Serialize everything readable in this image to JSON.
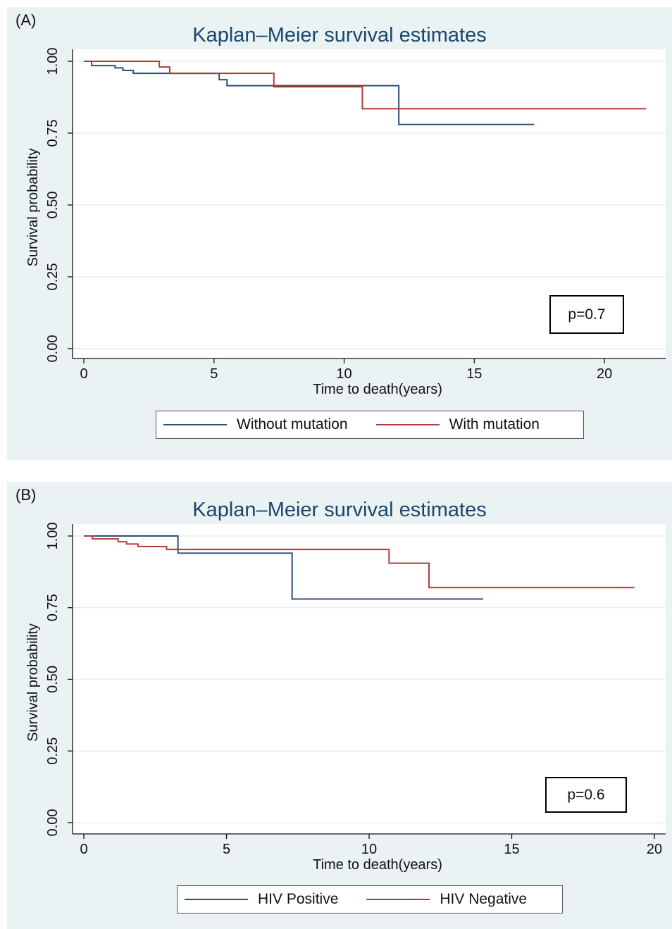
{
  "chart_data": [
    {
      "type": "line",
      "panel_label": "(A)",
      "title": "Kaplan–Meier survival estimates",
      "xlabel": "Time to death(years)",
      "ylabel": "Survival probability",
      "xlim": [
        0,
        22
      ],
      "ylim": [
        0,
        1
      ],
      "xticks": [
        0,
        5,
        10,
        15,
        20
      ],
      "yticks": [
        "0.00",
        "0.25",
        "0.50",
        "0.75",
        "1.00"
      ],
      "grid": true,
      "annotation": "p=0.7",
      "legend_position": "bottom",
      "series": [
        {
          "name": "Without mutation",
          "color": "#2e4f7a",
          "step": true,
          "x": [
            0,
            0.3,
            1.2,
            1.5,
            1.9,
            5.2,
            5.5,
            12.1,
            17.3
          ],
          "y": [
            1.0,
            0.985,
            0.977,
            0.968,
            0.958,
            0.936,
            0.915,
            0.78,
            0.78
          ]
        },
        {
          "name": "With mutation",
          "color": "#b23a3a",
          "step": true,
          "x": [
            0,
            2.9,
            3.3,
            7.3,
            10.7,
            21.6
          ],
          "y": [
            1.0,
            0.98,
            0.958,
            0.911,
            0.835,
            0.835
          ]
        }
      ]
    },
    {
      "type": "line",
      "panel_label": "(B)",
      "title": "Kaplan–Meier survival estimates",
      "xlabel": "Time to death(years)",
      "ylabel": "Survival probability",
      "xlim": [
        0,
        20
      ],
      "ylim": [
        0,
        1
      ],
      "xticks": [
        0,
        5,
        10,
        15,
        20
      ],
      "yticks": [
        "0.00",
        "0.25",
        "0.50",
        "0.75",
        "1.00"
      ],
      "grid": true,
      "annotation": "p=0.6",
      "legend_position": "bottom",
      "series": [
        {
          "name": "HIV Positive",
          "color": "#2e4f7a",
          "step": true,
          "x": [
            0,
            3.3,
            7.3,
            14.0
          ],
          "y": [
            1.0,
            0.94,
            0.78,
            0.78
          ]
        },
        {
          "name": "HIV Negative",
          "color": "#b23a3a",
          "step": true,
          "x": [
            0,
            0.3,
            1.2,
            1.5,
            1.9,
            2.9,
            10.7,
            12.1,
            19.3
          ],
          "y": [
            1.0,
            0.99,
            0.98,
            0.972,
            0.963,
            0.953,
            0.905,
            0.82,
            0.82
          ]
        }
      ]
    }
  ]
}
